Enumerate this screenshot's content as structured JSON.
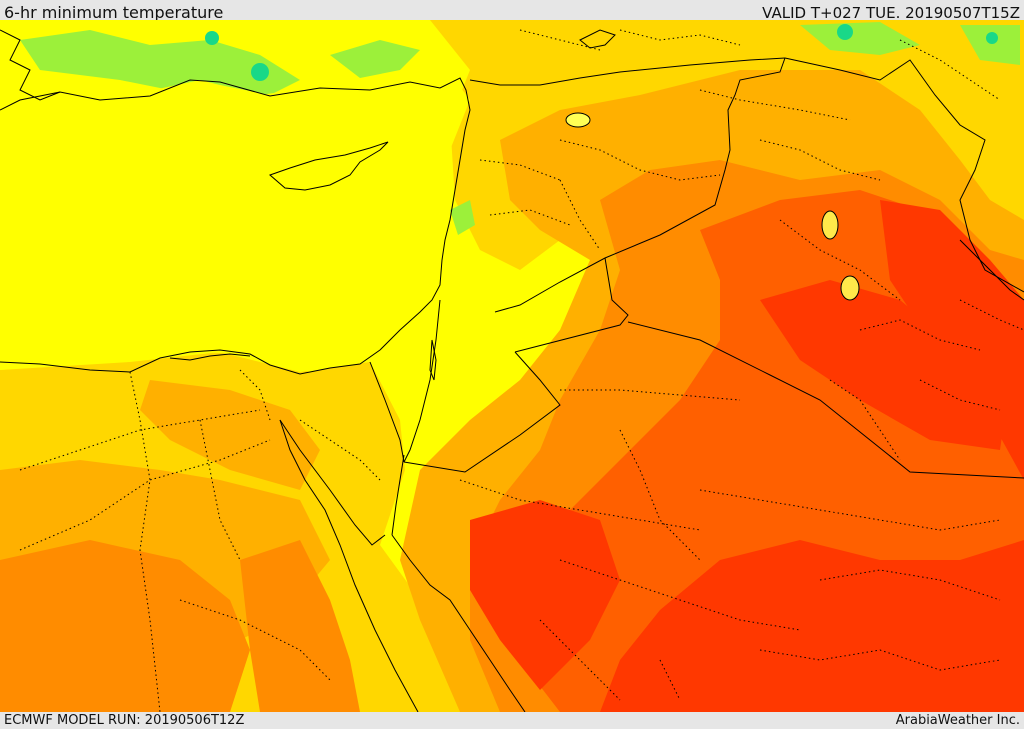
{
  "header": {
    "title": "6-hr minimum temperature",
    "valid": "VALID T+027 TUE. 20190507T15Z"
  },
  "footer": {
    "model_run": "ECMWF MODEL RUN: 20190506T12Z",
    "credit": "ArabiaWeather Inc."
  },
  "palette": {
    "sea": "#ffff00",
    "land_cool": "#ffff1a",
    "gold": "#ffd700",
    "orange_light": "#ffb000",
    "orange": "#ff8c00",
    "orange_red": "#ff6000",
    "red": "#ff3800",
    "green": "#9cf03a",
    "teal": "#19d888",
    "border": "#000000"
  }
}
